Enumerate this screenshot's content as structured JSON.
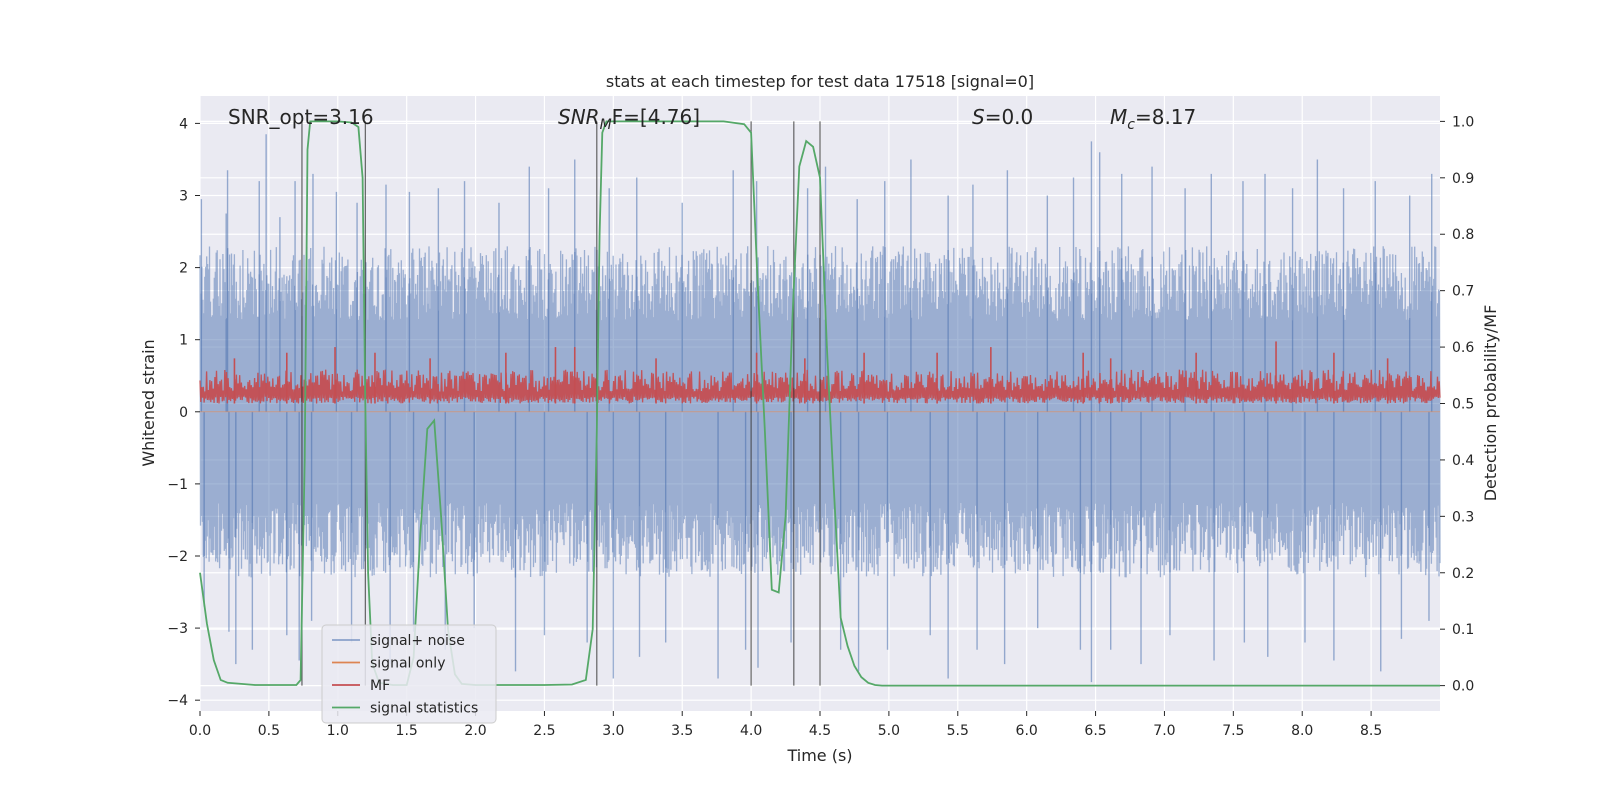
{
  "chart_data": {
    "type": "line",
    "title": "stats at each timestep for test data 17518 [signal=0]",
    "xlabel": "Time (s)",
    "ylabel_left": "Whitened strain",
    "ylabel_right": "Detection probability/MF",
    "xlim": [
      0.0,
      9.0
    ],
    "ylim_left": [
      -4.15,
      4.38
    ],
    "ylim_right": [
      -0.045,
      1.045
    ],
    "x_ticks": [
      "0.0",
      "0.5",
      "1.0",
      "1.5",
      "2.0",
      "2.5",
      "3.0",
      "3.5",
      "4.0",
      "4.5",
      "5.0",
      "5.5",
      "6.0",
      "6.5",
      "7.0",
      "7.5",
      "8.0",
      "8.5"
    ],
    "y_left_ticks": [
      "4",
      "3",
      "2",
      "1",
      "0",
      "−1",
      "−2",
      "−3",
      "−4"
    ],
    "y_right_ticks": [
      "1.0",
      "0.9",
      "0.8",
      "0.7",
      "0.6",
      "0.5",
      "0.4",
      "0.3",
      "0.2",
      "0.1",
      "0.0"
    ],
    "grid": true,
    "legend_placement": "lower-left",
    "annotations": {
      "snr_opt": "SNR_opt=3.16",
      "snr_mf_base": "SNR",
      "snr_mf_sub": "M",
      "snr_mf_rest": "F=[4.76]",
      "s_var": "S",
      "s_rest": "=0.0",
      "mc_var": "M",
      "mc_sub": "c",
      "mc_rest": "=8.17"
    },
    "noise_envelope": {
      "x": [
        0.0,
        9.0
      ],
      "typical_amplitude": 2.3,
      "peak_upper": [
        [
          0.01,
          2.95
        ],
        [
          0.19,
          2.75
        ],
        [
          0.2,
          3.35
        ],
        [
          0.43,
          3.2
        ],
        [
          0.48,
          3.85
        ],
        [
          0.58,
          2.7
        ],
        [
          0.69,
          3.2
        ],
        [
          0.82,
          3.3
        ],
        [
          0.99,
          3.05
        ],
        [
          1.14,
          2.9
        ],
        [
          1.35,
          3.15
        ],
        [
          1.52,
          3.05
        ],
        [
          1.73,
          3.1
        ],
        [
          1.92,
          3.2
        ],
        [
          2.17,
          2.9
        ],
        [
          2.39,
          3.4
        ],
        [
          2.53,
          3.1
        ],
        [
          2.72,
          3.5
        ],
        [
          2.97,
          3.1
        ],
        [
          3.17,
          3.25
        ],
        [
          3.5,
          2.9
        ],
        [
          3.87,
          3.35
        ],
        [
          4.04,
          3.2
        ],
        [
          4.41,
          3.1
        ],
        [
          4.54,
          3.4
        ],
        [
          4.77,
          2.95
        ],
        [
          4.97,
          3.2
        ],
        [
          5.16,
          3.5
        ],
        [
          5.43,
          3.0
        ],
        [
          5.61,
          3.15
        ],
        [
          5.86,
          3.35
        ],
        [
          6.15,
          3.0
        ],
        [
          6.34,
          3.25
        ],
        [
          6.47,
          3.75
        ],
        [
          6.53,
          3.6
        ],
        [
          6.69,
          3.3
        ],
        [
          6.91,
          3.4
        ],
        [
          7.15,
          3.1
        ],
        [
          7.34,
          3.3
        ],
        [
          7.57,
          3.2
        ],
        [
          7.73,
          3.3
        ],
        [
          7.93,
          3.1
        ],
        [
          8.11,
          3.5
        ],
        [
          8.3,
          3.1
        ],
        [
          8.53,
          3.2
        ],
        [
          8.78,
          3.0
        ],
        [
          8.94,
          3.3
        ]
      ],
      "peak_lower": [
        [
          0.03,
          -2.7
        ],
        [
          0.21,
          -3.05
        ],
        [
          0.26,
          -3.5
        ],
        [
          0.38,
          -3.3
        ],
        [
          0.63,
          -3.1
        ],
        [
          0.72,
          -3.45
        ],
        [
          0.81,
          -2.9
        ],
        [
          1.1,
          -3.2
        ],
        [
          1.38,
          -3.5
        ],
        [
          1.55,
          -3.05
        ],
        [
          1.78,
          -3.3
        ],
        [
          1.99,
          -3.0
        ],
        [
          2.29,
          -3.6
        ],
        [
          2.5,
          -3.1
        ],
        [
          2.81,
          -3.2
        ],
        [
          3.0,
          -3.7
        ],
        [
          3.19,
          -3.4
        ],
        [
          3.38,
          -3.2
        ],
        [
          3.76,
          -3.7
        ],
        [
          3.96,
          -3.3
        ],
        [
          4.05,
          -3.55
        ],
        [
          4.29,
          -3.2
        ],
        [
          4.65,
          -3.3
        ],
        [
          4.78,
          -3.6
        ],
        [
          4.99,
          -3.3
        ],
        [
          5.3,
          -3.1
        ],
        [
          5.43,
          -3.7
        ],
        [
          5.64,
          -3.3
        ],
        [
          5.84,
          -3.5
        ],
        [
          6.08,
          -3.0
        ],
        [
          6.39,
          -3.3
        ],
        [
          6.47,
          -3.75
        ],
        [
          6.61,
          -3.3
        ],
        [
          6.83,
          -3.5
        ],
        [
          7.04,
          -3.1
        ],
        [
          7.36,
          -3.45
        ],
        [
          7.58,
          -3.2
        ],
        [
          7.75,
          -3.4
        ],
        [
          8.02,
          -3.2
        ],
        [
          8.23,
          -3.45
        ],
        [
          8.57,
          -3.6
        ],
        [
          8.72,
          -3.15
        ],
        [
          8.92,
          -2.9
        ]
      ]
    },
    "mf_band": {
      "baseline": 0.5,
      "typical_max": 0.56,
      "peaks": [
        [
          0.25,
          0.58
        ],
        [
          0.63,
          0.59
        ],
        [
          0.98,
          0.6
        ],
        [
          1.27,
          0.59
        ],
        [
          1.67,
          0.58
        ],
        [
          2.22,
          0.59
        ],
        [
          2.58,
          0.6
        ],
        [
          2.72,
          0.6
        ],
        [
          3.31,
          0.58
        ],
        [
          4.04,
          0.59
        ],
        [
          4.39,
          0.58
        ],
        [
          4.82,
          0.59
        ],
        [
          5.35,
          0.59
        ],
        [
          5.74,
          0.6
        ],
        [
          6.41,
          0.59
        ],
        [
          6.61,
          0.58
        ],
        [
          7.23,
          0.59
        ],
        [
          7.81,
          0.61
        ],
        [
          8.23,
          0.59
        ],
        [
          8.62,
          0.58
        ]
      ]
    },
    "series": [
      {
        "name": "signal+ noise",
        "color": "#4c72b0"
      },
      {
        "name": "signal only",
        "color": "#dd8452"
      },
      {
        "name": "MF",
        "color": "#c44e52"
      },
      {
        "name": "signal statistics",
        "color": "#55a868",
        "x": [
          0.0,
          0.05,
          0.1,
          0.15,
          0.2,
          0.3,
          0.4,
          0.5,
          0.6,
          0.7,
          0.73,
          0.76,
          0.78,
          0.8,
          0.85,
          0.9,
          1.0,
          1.1,
          1.15,
          1.18,
          1.2,
          1.22,
          1.25,
          1.3,
          1.4,
          1.5,
          1.55,
          1.6,
          1.65,
          1.7,
          1.75,
          1.8,
          1.85,
          1.9,
          2.0,
          2.2,
          2.5,
          2.7,
          2.8,
          2.85,
          2.88,
          2.9,
          2.92,
          2.95,
          3.0,
          3.2,
          3.5,
          3.8,
          3.95,
          4.0,
          4.05,
          4.1,
          4.15,
          4.2,
          4.25,
          4.3,
          4.35,
          4.4,
          4.45,
          4.5,
          4.55,
          4.6,
          4.65,
          4.7,
          4.75,
          4.8,
          4.85,
          4.9,
          4.95,
          5.0,
          5.5,
          6.0,
          7.0,
          8.0,
          9.0
        ],
        "values": [
          0.2,
          0.11,
          0.045,
          0.01,
          0.005,
          0.003,
          0.001,
          0.001,
          0.001,
          0.001,
          0.01,
          0.4,
          0.95,
          1.0,
          1.0,
          1.0,
          1.0,
          0.998,
          0.99,
          0.9,
          0.5,
          0.2,
          0.04,
          0.005,
          0.001,
          0.001,
          0.05,
          0.27,
          0.455,
          0.47,
          0.3,
          0.1,
          0.02,
          0.003,
          0.001,
          0.001,
          0.001,
          0.002,
          0.01,
          0.1,
          0.45,
          0.8,
          0.98,
          1.0,
          1.0,
          1.0,
          1.0,
          1.0,
          0.995,
          0.98,
          0.7,
          0.45,
          0.17,
          0.165,
          0.3,
          0.65,
          0.92,
          0.965,
          0.955,
          0.9,
          0.6,
          0.35,
          0.12,
          0.07,
          0.035,
          0.015,
          0.005,
          0.001,
          0.0,
          0.0,
          0.0,
          0.0,
          0.0,
          0.0,
          0.0
        ]
      }
    ],
    "vertical_markers_x": [
      0.74,
      1.2,
      2.88,
      4.0,
      4.31,
      4.5
    ]
  }
}
